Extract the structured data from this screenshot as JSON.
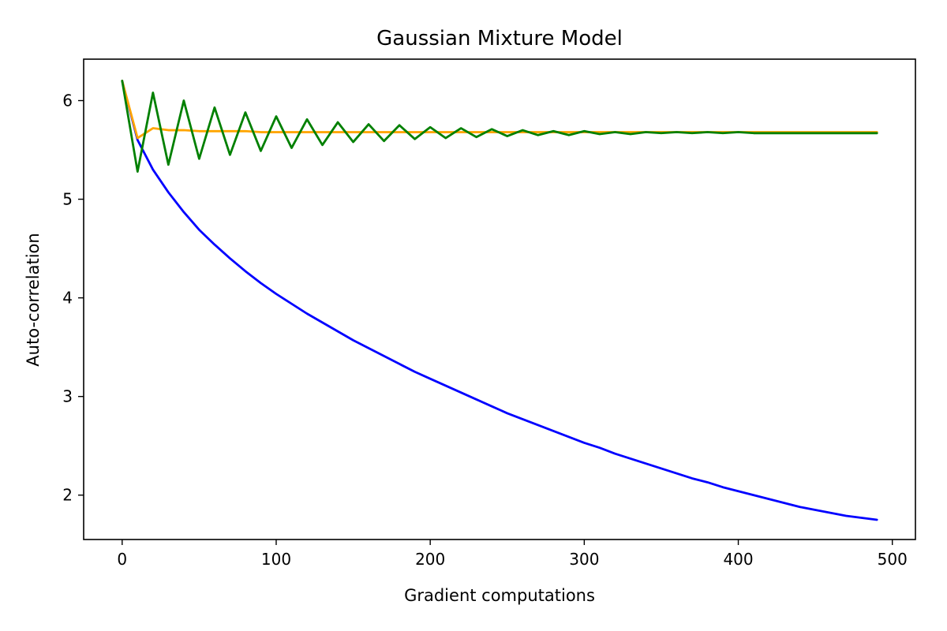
{
  "chart_data": {
    "type": "line",
    "title": "Gaussian Mixture Model",
    "xlabel": "Gradient computations",
    "ylabel": "Auto-correlation",
    "xlim": [
      -25,
      515
    ],
    "ylim": [
      1.55,
      6.42
    ],
    "xticks": [
      0,
      100,
      200,
      300,
      400,
      500
    ],
    "yticks": [
      2,
      3,
      4,
      5,
      6
    ],
    "grid": false,
    "legend": "none",
    "colors": {
      "blue": "#0000ff",
      "orange": "#ffa500",
      "green": "#008000"
    },
    "x": [
      0,
      10,
      20,
      30,
      40,
      50,
      60,
      70,
      80,
      90,
      100,
      110,
      120,
      130,
      140,
      150,
      160,
      170,
      180,
      190,
      200,
      210,
      220,
      230,
      240,
      250,
      260,
      270,
      280,
      290,
      300,
      310,
      320,
      330,
      340,
      350,
      360,
      370,
      380,
      390,
      400,
      410,
      420,
      430,
      440,
      450,
      460,
      470,
      480,
      490
    ],
    "series": [
      {
        "color": "#0000ff",
        "values": [
          6.2,
          5.6,
          5.3,
          5.07,
          4.87,
          4.69,
          4.54,
          4.4,
          4.27,
          4.15,
          4.04,
          3.94,
          3.84,
          3.75,
          3.66,
          3.57,
          3.49,
          3.41,
          3.33,
          3.25,
          3.18,
          3.11,
          3.04,
          2.97,
          2.9,
          2.83,
          2.77,
          2.71,
          2.65,
          2.59,
          2.53,
          2.48,
          2.42,
          2.37,
          2.32,
          2.27,
          2.22,
          2.17,
          2.13,
          2.08,
          2.04,
          2.0,
          1.96,
          1.92,
          1.88,
          1.85,
          1.82,
          1.79,
          1.77,
          1.75
        ]
      },
      {
        "color": "#ffa500",
        "values": [
          6.2,
          5.62,
          5.72,
          5.7,
          5.7,
          5.69,
          5.69,
          5.69,
          5.69,
          5.68,
          5.68,
          5.68,
          5.68,
          5.68,
          5.68,
          5.68,
          5.68,
          5.68,
          5.68,
          5.68,
          5.68,
          5.68,
          5.68,
          5.68,
          5.68,
          5.68,
          5.68,
          5.68,
          5.68,
          5.68,
          5.68,
          5.68,
          5.68,
          5.68,
          5.68,
          5.68,
          5.68,
          5.68,
          5.68,
          5.68,
          5.68,
          5.68,
          5.68,
          5.68,
          5.68,
          5.68,
          5.68,
          5.68,
          5.68,
          5.68
        ]
      },
      {
        "color": "#008000",
        "values": [
          6.2,
          5.28,
          6.08,
          5.35,
          6.0,
          5.41,
          5.93,
          5.45,
          5.88,
          5.49,
          5.84,
          5.52,
          5.81,
          5.55,
          5.78,
          5.58,
          5.76,
          5.59,
          5.75,
          5.61,
          5.73,
          5.62,
          5.72,
          5.63,
          5.71,
          5.64,
          5.7,
          5.65,
          5.69,
          5.65,
          5.69,
          5.66,
          5.68,
          5.66,
          5.68,
          5.67,
          5.68,
          5.67,
          5.68,
          5.67,
          5.68,
          5.67,
          5.67,
          5.67,
          5.67,
          5.67,
          5.67,
          5.67,
          5.67,
          5.67
        ]
      }
    ]
  }
}
